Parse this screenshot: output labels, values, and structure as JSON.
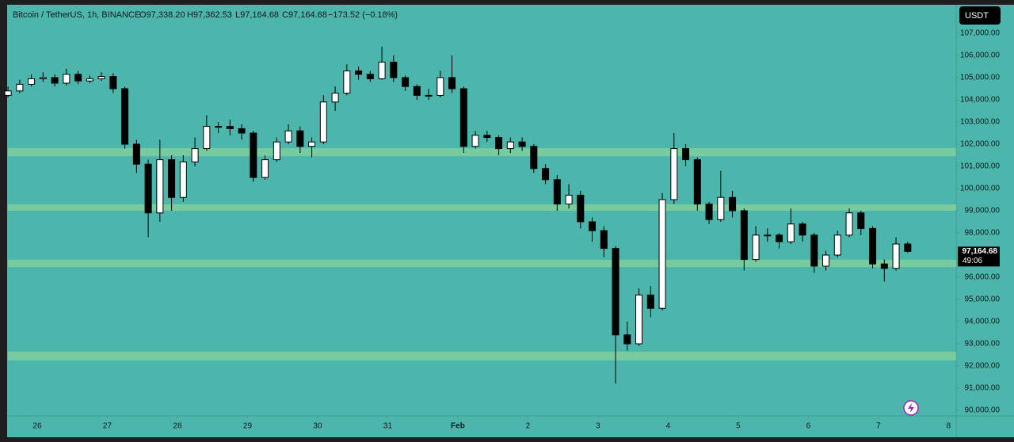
{
  "chart_data": {
    "type": "candlestick",
    "symbol": "Bitcoin / TetherUS, 1h, BINANCE",
    "ohlc_labels": [
      "O97,338.20",
      "H97,362.53",
      "L97,164.68",
      "C97,164.68"
    ],
    "change": "−173.52 (−0.18%)",
    "currency": "USDT",
    "last_price_label": "97,164.68",
    "countdown": "49:06",
    "x": [
      -10,
      -6,
      -2,
      2,
      6,
      10,
      14,
      18,
      22,
      26,
      30,
      34,
      38,
      42,
      46,
      50,
      54,
      58,
      62,
      66,
      70,
      74,
      78,
      82,
      86,
      90,
      94,
      98,
      102,
      106,
      110,
      114,
      118,
      122,
      126,
      130,
      134,
      138,
      142,
      146,
      150,
      154,
      158,
      162,
      166,
      170,
      174,
      178,
      182,
      186,
      190,
      194,
      198,
      202,
      206,
      210,
      214,
      218,
      222,
      226,
      230,
      234,
      238,
      242,
      246,
      250,
      254,
      258,
      262,
      266,
      270,
      274,
      278,
      282,
      286,
      290,
      294,
      298
    ],
    "open": [
      104200,
      104400,
      104700,
      104950,
      105000,
      104750,
      105150,
      104850,
      104950,
      105050,
      104500,
      102000,
      101100,
      98900,
      101300,
      99600,
      101200,
      101800,
      102800,
      102800,
      102700,
      102500,
      100500,
      101300,
      102100,
      102600,
      101900,
      102100,
      103900,
      104300,
      105300,
      105150,
      104950,
      105700,
      105000,
      104600,
      104200,
      104200,
      105000,
      104500,
      101900,
      102400,
      102300,
      101800,
      102100,
      101900,
      100900,
      100400,
      99300,
      99700,
      98500,
      98100,
      97300,
      93400,
      93000,
      95200,
      94600,
      99500,
      101800,
      101300,
      99300,
      98600,
      99600,
      99000,
      96800,
      97900,
      97900,
      97600,
      98400,
      97900,
      96500,
      97000,
      97900,
      98900,
      98200,
      96600,
      96400,
      97500
    ],
    "high": [
      104600,
      104900,
      105150,
      105250,
      105150,
      105400,
      105300,
      105100,
      105250,
      105200,
      104600,
      102200,
      101300,
      102200,
      101500,
      101500,
      102300,
      103300,
      103000,
      103100,
      102900,
      102600,
      101500,
      102300,
      102900,
      102800,
      102300,
      104200,
      104600,
      105600,
      105500,
      105300,
      106400,
      106000,
      105100,
      104700,
      104500,
      105300,
      106000,
      104600,
      102600,
      102600,
      102400,
      102300,
      102300,
      102000,
      101100,
      100600,
      100200,
      99900,
      98700,
      98300,
      97400,
      94000,
      95500,
      95600,
      99800,
      102500,
      102000,
      101400,
      99400,
      100800,
      99900,
      99100,
      98300,
      98200,
      98000,
      99100,
      98500,
      98000,
      97200,
      98100,
      99100,
      99000,
      98300,
      96800,
      97800,
      97600
    ],
    "low": [
      104100,
      104300,
      104600,
      104800,
      104600,
      104650,
      104700,
      104750,
      104850,
      104300,
      101800,
      100700,
      97800,
      98500,
      99000,
      99400,
      101000,
      101700,
      102500,
      102400,
      102200,
      100300,
      100400,
      101200,
      102000,
      101600,
      101400,
      102000,
      103500,
      104200,
      104900,
      104800,
      104900,
      104800,
      104400,
      104000,
      104000,
      104100,
      104300,
      101600,
      101800,
      102100,
      101500,
      101600,
      101700,
      100700,
      100200,
      99000,
      99100,
      98200,
      97600,
      96900,
      91200,
      92700,
      92900,
      94200,
      94500,
      99300,
      101000,
      99000,
      98400,
      98500,
      98700,
      96300,
      96700,
      97600,
      97300,
      97500,
      97600,
      96200,
      96300,
      96900,
      97800,
      97900,
      96400,
      95800,
      96300,
      97100
    ],
    "close": [
      104400,
      104700,
      104950,
      105000,
      104750,
      105150,
      104850,
      104950,
      105050,
      104500,
      102000,
      101100,
      98900,
      101300,
      99600,
      101200,
      101800,
      102800,
      102800,
      102700,
      102500,
      100500,
      101300,
      102100,
      102600,
      101900,
      102100,
      103900,
      104300,
      105300,
      105150,
      104950,
      105700,
      105000,
      104600,
      104200,
      104200,
      105000,
      104500,
      101900,
      102400,
      102300,
      101800,
      102100,
      101900,
      100900,
      100400,
      99300,
      99700,
      98500,
      98100,
      97300,
      93400,
      93000,
      95200,
      94600,
      99500,
      101800,
      101300,
      99300,
      98600,
      99600,
      99000,
      96800,
      97900,
      97900,
      97600,
      98400,
      97900,
      96500,
      97000,
      97900,
      98900,
      98200,
      96600,
      96400,
      97500,
      97164.68
    ],
    "up_color": "#ffffff",
    "down_color": "#000000",
    "zones": [
      {
        "from": 101460,
        "to": 101820
      },
      {
        "from": 99000,
        "to": 99290
      },
      {
        "from": 96460,
        "to": 96790
      },
      {
        "from": 92250,
        "to": 92640
      }
    ],
    "zone_color": "#7fcf9c",
    "xlim": [
      -10.03,
      314.6
    ],
    "xticks": [
      {
        "value": 0,
        "label": "26"
      },
      {
        "value": 24,
        "label": "27"
      },
      {
        "value": 48,
        "label": "28"
      },
      {
        "value": 72,
        "label": "29"
      },
      {
        "value": 96,
        "label": "30"
      },
      {
        "value": 120,
        "label": "31"
      },
      {
        "value": 144,
        "label": "Feb"
      },
      {
        "value": 168,
        "label": "2"
      },
      {
        "value": 192,
        "label": "3"
      },
      {
        "value": 216,
        "label": "4"
      },
      {
        "value": 240,
        "label": "5"
      },
      {
        "value": 264,
        "label": "6"
      },
      {
        "value": 288,
        "label": "7"
      },
      {
        "value": 312,
        "label": "8"
      }
    ],
    "ylim": [
      89750,
      108214
    ],
    "yticks": [
      {
        "value": 90000,
        "label": "90,000.00"
      },
      {
        "value": 91000,
        "label": "91,000.00"
      },
      {
        "value": 92000,
        "label": "92,000.00"
      },
      {
        "value": 93000,
        "label": "93,000.00"
      },
      {
        "value": 94000,
        "label": "94,000.00"
      },
      {
        "value": 95000,
        "label": "95,000.00"
      },
      {
        "value": 96000,
        "label": "96,000.00"
      },
      {
        "value": 97000,
        "label": "97,000.00"
      },
      {
        "value": 98000,
        "label": "98,000.00"
      },
      {
        "value": 99000,
        "label": "99,000.00"
      },
      {
        "value": 100000,
        "label": "100,000.00"
      },
      {
        "value": 101000,
        "label": "101,000.00"
      },
      {
        "value": 102000,
        "label": "102,000.00"
      },
      {
        "value": 103000,
        "label": "103,000.00"
      },
      {
        "value": 104000,
        "label": "104,000.00"
      },
      {
        "value": 105000,
        "label": "105,000.00"
      },
      {
        "value": 106000,
        "label": "106,000.00"
      },
      {
        "value": 107000,
        "label": "107,000.00"
      }
    ],
    "grid": false
  }
}
